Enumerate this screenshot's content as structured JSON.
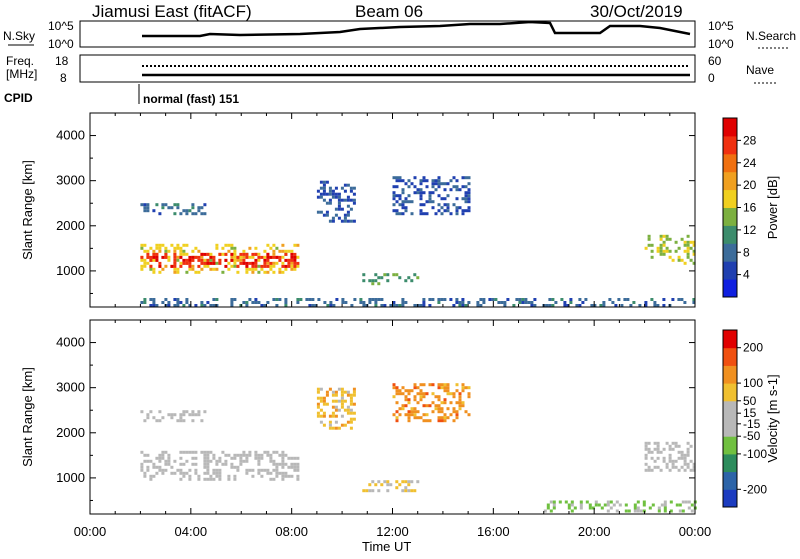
{
  "header": {
    "station": "Jiamusi East (fitACF)",
    "beam": "Beam 06",
    "date": "30/Oct/2019"
  },
  "strips": {
    "nsky_label": "N.Sky",
    "nsky_ticks_left": [
      "10^5",
      "10^0"
    ],
    "nsky_ticks_right": [
      "10^5",
      "10^0"
    ],
    "nsearch_label": "N.Search",
    "freq_label_line1": "Freq.",
    "freq_label_line2": "[MHz]",
    "freq_ticks": [
      "18",
      "8"
    ],
    "nave_ticks": [
      "60",
      "0"
    ],
    "nave_label": "Nave",
    "cpid_label": "CPID",
    "cpid_text": "normal (fast) 151"
  },
  "colors": {
    "power_scale": [
      "#1020e0",
      "#2040b0",
      "#3c6c9a",
      "#3c8c6c",
      "#7cb040",
      "#f0d020",
      "#f0a020",
      "#f07010",
      "#f03010",
      "#e00000"
    ],
    "velocity_scale": [
      "#1c3cc0",
      "#2c64a8",
      "#2c8c5c",
      "#70c040",
      "#b8b8b8",
      "#b8b8b8",
      "#f0c030",
      "#f09020",
      "#f05010",
      "#e00000"
    ]
  },
  "chart_data": [
    {
      "type": "heatmap",
      "panel": "power",
      "ylabel": "Slant Range [km]",
      "y_ticks": [
        "4000",
        "3000",
        "2000",
        "1000"
      ],
      "ylim": [
        200,
        4500
      ],
      "xlim": [
        "00:00",
        "24:00"
      ],
      "colorbar_label": "Power [dB]",
      "colorbar_ticks": [
        "28",
        "24",
        "20",
        "16",
        "12",
        "8",
        "4"
      ],
      "colorbar_range": [
        0,
        32
      ],
      "regions": [
        {
          "t0": 2.0,
          "t1": 8.2,
          "r0": 1000,
          "r1": 1600,
          "value": 18
        },
        {
          "t0": 2.0,
          "t1": 8.2,
          "r0": 1100,
          "r1": 1400,
          "value": 28
        },
        {
          "t0": 2.0,
          "t1": 4.5,
          "r0": 2250,
          "r1": 2500,
          "value": 8
        },
        {
          "t0": 9.0,
          "t1": 10.5,
          "r0": 2100,
          "r1": 3000,
          "value": 6
        },
        {
          "t0": 10.8,
          "t1": 13.0,
          "r0": 750,
          "r1": 950,
          "value": 12
        },
        {
          "t0": 12.0,
          "t1": 15.0,
          "r0": 2300,
          "r1": 3100,
          "value": 6
        },
        {
          "t0": 22.0,
          "t1": 24.0,
          "r0": 1200,
          "r1": 1800,
          "value": 16
        },
        {
          "t0": 2.0,
          "t1": 24.0,
          "r0": 250,
          "r1": 400,
          "value": 8
        }
      ]
    },
    {
      "type": "heatmap",
      "panel": "velocity",
      "ylabel": "Slant Range [km]",
      "xlabel": "Time UT",
      "y_ticks": [
        "4000",
        "3000",
        "2000",
        "1000"
      ],
      "x_ticks": [
        "00:00",
        "04:00",
        "08:00",
        "12:00",
        "16:00",
        "20:00",
        "00:00"
      ],
      "ylim": [
        200,
        4500
      ],
      "xlim": [
        "00:00",
        "24:00"
      ],
      "colorbar_label": "Velocity [m s-1]",
      "colorbar_ticks": [
        "200",
        "100",
        "50",
        "15",
        "-15",
        "-50",
        "-100",
        "-200"
      ],
      "colorbar_range": [
        -250,
        250
      ],
      "regions": [
        {
          "t0": 2.0,
          "t1": 8.2,
          "r0": 1000,
          "r1": 1600,
          "value": 0
        },
        {
          "t0": 2.0,
          "t1": 4.5,
          "r0": 2250,
          "r1": 2500,
          "value": 0
        },
        {
          "t0": 9.0,
          "t1": 10.5,
          "r0": 2100,
          "r1": 3000,
          "value": 80
        },
        {
          "t0": 10.8,
          "t1": 13.0,
          "r0": 750,
          "r1": 950,
          "value": 40
        },
        {
          "t0": 12.0,
          "t1": 15.0,
          "r0": 2300,
          "r1": 3100,
          "value": 120
        },
        {
          "t0": 22.0,
          "t1": 24.0,
          "r0": 1200,
          "r1": 1800,
          "value": 0
        },
        {
          "t0": 18.0,
          "t1": 24.0,
          "r0": 250,
          "r1": 500,
          "value": -60
        }
      ]
    }
  ]
}
